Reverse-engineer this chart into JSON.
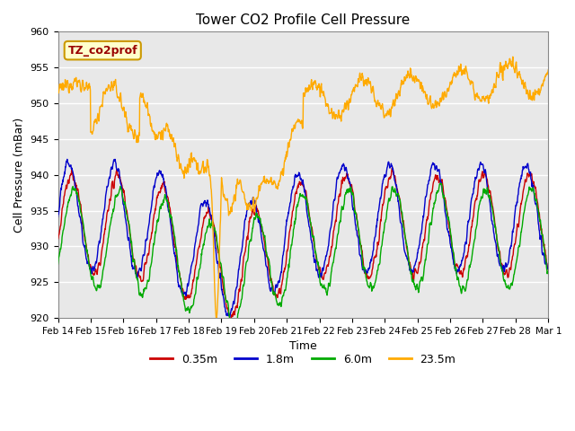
{
  "title": "Tower CO2 Profile Cell Pressure",
  "xlabel": "Time",
  "ylabel": "Cell Pressure (mBar)",
  "ylim": [
    920,
    960
  ],
  "yticks": [
    920,
    925,
    930,
    935,
    940,
    945,
    950,
    955,
    960
  ],
  "bg_color": "#e8e8e8",
  "plot_bg_color": "#e8e8e8",
  "legend_label": "TZ_co2prof",
  "legend_box_facecolor": "#ffffcc",
  "legend_box_edgecolor": "#cc9900",
  "legend_text_color": "#990000",
  "series": [
    {
      "label": "0.35m",
      "color": "#cc0000",
      "lw": 1.0
    },
    {
      "label": "1.8m",
      "color": "#0000cc",
      "lw": 1.0
    },
    {
      "label": "6.0m",
      "color": "#00aa00",
      "lw": 1.0
    },
    {
      "label": "23.5m",
      "color": "#ffaa00",
      "lw": 1.0
    }
  ],
  "xtick_labels": [
    "Feb 14",
    "Feb 15",
    "Feb 16",
    "Feb 17",
    "Feb 18",
    "Feb 19",
    "Feb 20",
    "Feb 21",
    "Feb 22",
    "Feb 23",
    "Feb 24",
    "Feb 25",
    "Feb 26",
    "Feb 27",
    "Feb 28",
    "Mar 1"
  ],
  "n_days": 15,
  "pts_per_day": 96
}
